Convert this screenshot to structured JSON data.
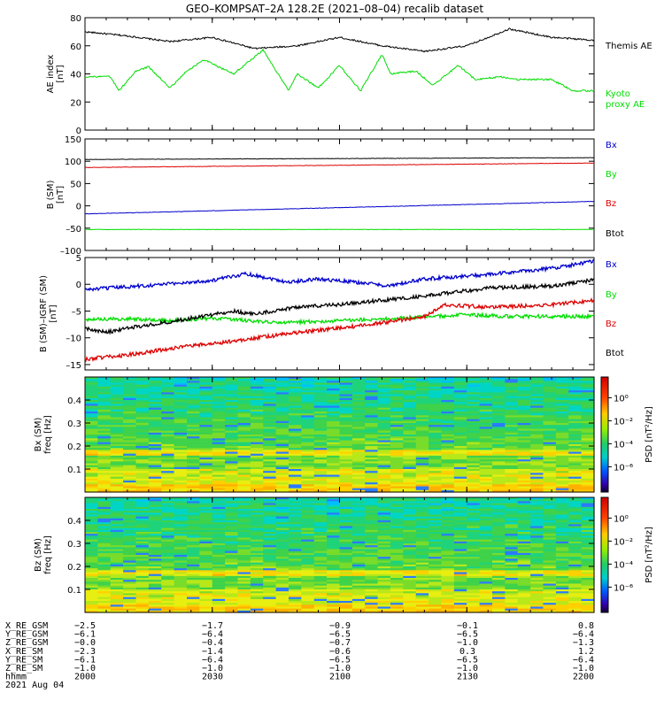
{
  "title": "GEO–KOMPSAT–2A 128.2E (2021–08–04) recalib dataset",
  "colors": {
    "black": "#000000",
    "green": "#00dd00",
    "red": "#dd0000",
    "blue": "#0000cc"
  },
  "chart_data": [
    {
      "type": "line",
      "ylabel": "AE index",
      "yunit": "[nT]",
      "ylim": [
        0,
        80
      ],
      "yticks": [
        "0",
        "20",
        "40",
        "60",
        "80"
      ],
      "series": [
        {
          "name": "Themis AE",
          "color": "#000000",
          "x": [
            0,
            10,
            20,
            30,
            40,
            50,
            60,
            70,
            80,
            90,
            100,
            110,
            120
          ],
          "y": [
            70,
            67,
            63,
            66,
            58,
            60,
            66,
            60,
            56,
            60,
            72,
            66,
            64
          ]
        },
        {
          "name": "Kyoto proxy AE",
          "name_lines": [
            "Kyoto",
            "proxy AE"
          ],
          "color": "#00dd00",
          "x": [
            0,
            6,
            8,
            12,
            15,
            20,
            24,
            28,
            35,
            42,
            48,
            50,
            55,
            60,
            65,
            70,
            72,
            78,
            82,
            88,
            92,
            98,
            102,
            110,
            115,
            120
          ],
          "y": [
            38,
            38,
            28,
            42,
            45,
            30,
            42,
            50,
            40,
            57,
            28,
            40,
            30,
            46,
            28,
            54,
            40,
            42,
            32,
            46,
            36,
            38,
            36,
            36,
            28,
            28
          ]
        }
      ]
    },
    {
      "type": "line",
      "ylabel": "B (SM)",
      "yunit": "[nT]",
      "ylim": [
        -100,
        150
      ],
      "yticks": [
        "–100",
        "–50",
        "0",
        "50",
        "100",
        "150"
      ],
      "series": [
        {
          "name": "Bx",
          "color": "#0000cc",
          "x": [
            0,
            120
          ],
          "y": [
            -18,
            10
          ]
        },
        {
          "name": "By",
          "color": "#00dd00",
          "x": [
            0,
            120
          ],
          "y": [
            -53,
            -53
          ]
        },
        {
          "name": "Bz",
          "color": "#dd0000",
          "x": [
            0,
            120
          ],
          "y": [
            86,
            96
          ]
        },
        {
          "name": "Btot",
          "color": "#000000",
          "x": [
            0,
            120
          ],
          "y": [
            104,
            108
          ]
        }
      ]
    },
    {
      "type": "line",
      "ylabel": "B (SM)–IGRF (SM)",
      "yunit": "[nT]",
      "ylim": [
        -16,
        5
      ],
      "yticks": [
        "–15",
        "–10",
        "–5",
        "0",
        "5"
      ],
      "series": [
        {
          "name": "Bx",
          "color": "#0000cc",
          "x": [
            0,
            15,
            30,
            38,
            48,
            55,
            65,
            72,
            80,
            95,
            110,
            120
          ],
          "y": [
            -1,
            -0.2,
            0.7,
            2,
            0.4,
            1,
            0.3,
            -0.3,
            1,
            1.8,
            3,
            4.3
          ]
        },
        {
          "name": "By",
          "color": "#00dd00",
          "x": [
            0,
            10,
            20,
            30,
            45,
            60,
            75,
            90,
            100,
            120
          ],
          "y": [
            -6.6,
            -6.4,
            -6.8,
            -6.3,
            -7.2,
            -6.8,
            -6.3,
            -5.7,
            -6,
            -6
          ]
        },
        {
          "name": "Bz",
          "color": "#dd0000",
          "x": [
            0,
            10,
            20,
            35,
            50,
            60,
            70,
            80,
            85,
            95,
            110,
            120
          ],
          "y": [
            -14,
            -13.2,
            -12,
            -10.6,
            -9,
            -8.2,
            -7.2,
            -6,
            -3.8,
            -4.3,
            -3.8,
            -3
          ]
        },
        {
          "name": "Btot",
          "color": "#000000",
          "x": [
            0,
            5,
            10,
            20,
            35,
            40,
            50,
            60,
            70,
            80,
            95,
            110,
            120
          ],
          "y": [
            -8.2,
            -9,
            -8.2,
            -7,
            -5,
            -5.6,
            -4.2,
            -3.8,
            -3,
            -2.2,
            -0.7,
            -0.3,
            0.8
          ]
        }
      ]
    },
    {
      "type": "heatmap",
      "ylabel": "Bx (SM)",
      "yunit": "freq [Hz]",
      "ylim": [
        0,
        0.5
      ],
      "yticks": [
        "0.1",
        "0.2",
        "0.3",
        "0.4"
      ],
      "colorbar_label": "PSD [nT²/Hz]",
      "colorbar_ticks": [
        "10⁰",
        "10⁻²",
        "10⁻⁴",
        "10⁻⁶"
      ]
    },
    {
      "type": "heatmap",
      "ylabel": "Bz (SM)",
      "yunit": "freq [Hz]",
      "ylim": [
        0,
        0.5
      ],
      "yticks": [
        "0.1",
        "0.2",
        "0.3",
        "0.4"
      ],
      "colorbar_label": "PSD [nT²/Hz]",
      "colorbar_ticks": [
        "10⁰",
        "10⁻²",
        "10⁻⁴",
        "10⁻⁶"
      ]
    }
  ],
  "ephemeris": {
    "rows": [
      {
        "label": "X_RE_GSM",
        "values": [
          "−2.5",
          "−1.7",
          "−0.9",
          "−0.1",
          "0.8"
        ]
      },
      {
        "label": "Y_RE_GSM",
        "values": [
          "−6.1",
          "−6.4",
          "−6.5",
          "−6.5",
          "−6.4"
        ]
      },
      {
        "label": "Z_RE_GSM",
        "values": [
          "−0.0",
          "−0.4",
          "−0.7",
          "−1.0",
          "−1.3"
        ]
      },
      {
        "label": "X_RE_SM",
        "values": [
          "−2.3",
          "−1.4",
          "−0.6",
          "0.3",
          "1.2"
        ]
      },
      {
        "label": "Y_RE_SM",
        "values": [
          "−6.1",
          "−6.4",
          "−6.5",
          "−6.5",
          "−6.4"
        ]
      },
      {
        "label": "Z_RE_SM",
        "values": [
          "−1.0",
          "−1.0",
          "−1.0",
          "−1.0",
          "−1.0"
        ]
      },
      {
        "label": "hhmm",
        "values": [
          "2000",
          "2030",
          "2100",
          "2130",
          "2200"
        ]
      }
    ],
    "date": "2021 Aug 04"
  }
}
